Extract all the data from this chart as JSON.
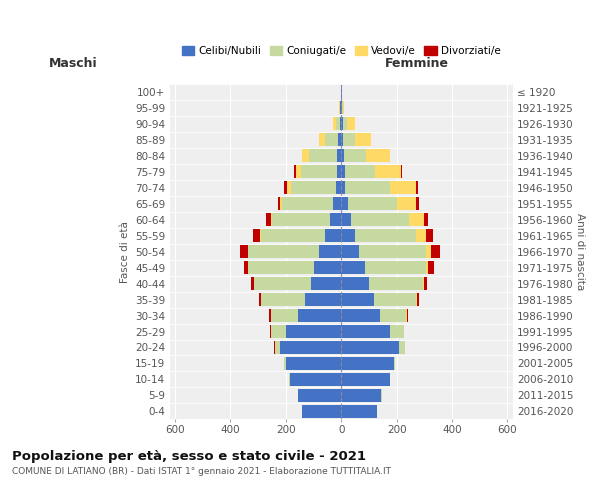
{
  "age_groups": [
    "0-4",
    "5-9",
    "10-14",
    "15-19",
    "20-24",
    "25-29",
    "30-34",
    "35-39",
    "40-44",
    "45-49",
    "50-54",
    "55-59",
    "60-64",
    "65-69",
    "70-74",
    "75-79",
    "80-84",
    "85-89",
    "90-94",
    "95-99",
    "100+"
  ],
  "birth_years": [
    "2016-2020",
    "2011-2015",
    "2006-2010",
    "2001-2005",
    "1996-2000",
    "1991-1995",
    "1986-1990",
    "1981-1985",
    "1976-1980",
    "1971-1975",
    "1966-1970",
    "1961-1965",
    "1956-1960",
    "1951-1955",
    "1946-1950",
    "1941-1945",
    "1936-1940",
    "1931-1935",
    "1926-1930",
    "1921-1925",
    "≤ 1920"
  ],
  "maschi": {
    "celibi": [
      140,
      155,
      185,
      200,
      220,
      200,
      155,
      130,
      110,
      100,
      80,
      60,
      40,
      30,
      20,
      15,
      15,
      10,
      5,
      3,
      2
    ],
    "coniugati": [
      0,
      1,
      2,
      5,
      20,
      55,
      100,
      160,
      205,
      235,
      255,
      230,
      210,
      185,
      160,
      130,
      100,
      50,
      15,
      2,
      0
    ],
    "vedovi": [
      0,
      0,
      0,
      0,
      0,
      0,
      0,
      0,
      1,
      1,
      2,
      3,
      5,
      5,
      15,
      20,
      25,
      20,
      10,
      2,
      0
    ],
    "divorziati": [
      0,
      0,
      0,
      0,
      1,
      2,
      5,
      8,
      10,
      15,
      30,
      25,
      15,
      10,
      10,
      5,
      2,
      0,
      0,
      0,
      0
    ]
  },
  "femmine": {
    "nubili": [
      130,
      145,
      175,
      190,
      210,
      175,
      140,
      120,
      100,
      85,
      65,
      50,
      35,
      25,
      15,
      12,
      10,
      8,
      5,
      3,
      2
    ],
    "coniugate": [
      0,
      1,
      2,
      5,
      20,
      50,
      95,
      150,
      195,
      220,
      240,
      220,
      210,
      175,
      160,
      110,
      80,
      40,
      15,
      2,
      0
    ],
    "vedove": [
      0,
      0,
      0,
      0,
      0,
      1,
      2,
      3,
      5,
      10,
      20,
      35,
      55,
      70,
      95,
      95,
      85,
      60,
      30,
      5,
      0
    ],
    "divorziate": [
      0,
      0,
      0,
      0,
      1,
      2,
      3,
      8,
      10,
      20,
      30,
      25,
      15,
      10,
      8,
      3,
      2,
      0,
      0,
      0,
      0
    ]
  },
  "colors": {
    "celibi": "#4472C4",
    "coniugati": "#C5D9A0",
    "vedovi": "#FFD966",
    "divorziati": "#C00000"
  },
  "title": "Popolazione per età, sesso e stato civile - 2021",
  "subtitle": "COMUNE DI LATIANO (BR) - Dati ISTAT 1° gennaio 2021 - Elaborazione TUTTITALIA.IT",
  "xlabel_maschi": "Maschi",
  "xlabel_femmine": "Femmine",
  "ylabel_left": "Fasce di età",
  "ylabel_right": "Anni di nascita",
  "xlim": 620,
  "bg_color": "#efefef",
  "legend_labels": [
    "Celibi/Nubili",
    "Coniugati/e",
    "Vedovi/e",
    "Divorziati/e"
  ]
}
